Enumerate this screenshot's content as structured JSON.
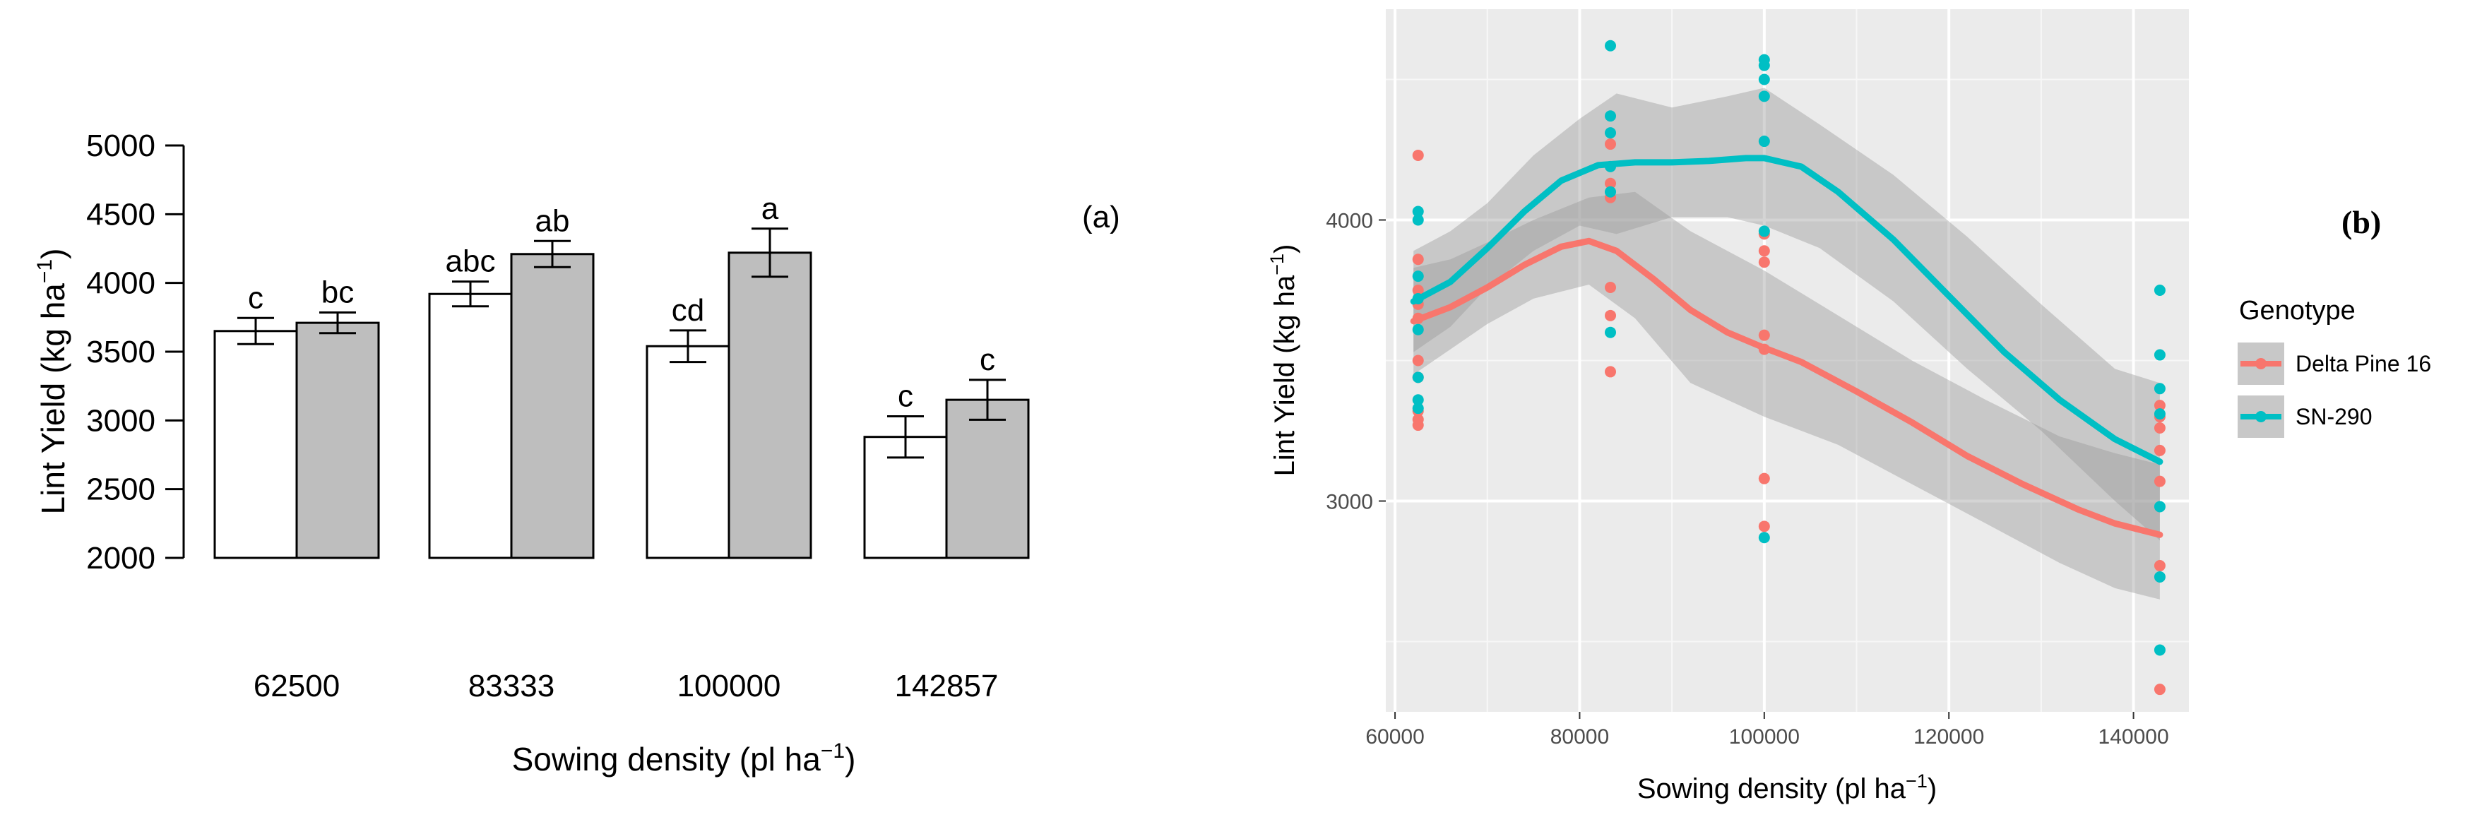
{
  "chart_data": [
    {
      "type": "bar",
      "panel_label": "(a)",
      "xlabel": "Sowing density (pl ha",
      "xlabel_sup": "−1",
      "xlabel_end": ")",
      "ylabel": "Lint Yield (kg ha",
      "ylabel_sup": "−1",
      "ylabel_end": ")",
      "ylim": [
        2000,
        5000
      ],
      "yticks": [
        "2000",
        "2500",
        "3000",
        "3500",
        "4000",
        "4500",
        "5000"
      ],
      "categories": [
        "62500",
        "83333",
        "100000",
        "142857"
      ],
      "series": [
        {
          "name": "Delta Pine 16",
          "color": "#ffffff",
          "values": [
            3650,
            3920,
            3540,
            2880
          ],
          "errors": [
            95,
            90,
            115,
            150
          ],
          "letters": [
            "c",
            "abc",
            "cd",
            "c"
          ]
        },
        {
          "name": "SN-290",
          "color": "#bebebe",
          "values": [
            3710,
            4210,
            4220,
            3150
          ],
          "errors": [
            75,
            95,
            175,
            145
          ],
          "letters": [
            "bc",
            "ab",
            "a",
            "c"
          ]
        }
      ]
    },
    {
      "type": "scatter",
      "panel_label": "(b)",
      "xlabel": "Sowing density (pl ha",
      "xlabel_sup": "−1",
      "xlabel_end": ")",
      "ylabel": "Lint Yield (kg ha",
      "ylabel_sup": "−1",
      "ylabel_end": ")",
      "xlim": [
        59000,
        146000
      ],
      "ylim": [
        2250,
        4750
      ],
      "xticks": [
        "60000",
        "80000",
        "100000",
        "120000",
        "140000"
      ],
      "yticks": [
        "3000",
        "4000"
      ],
      "legend_title": "Genotype",
      "legend_position": "right",
      "grid": true,
      "series": [
        {
          "name": "Delta Pine 16",
          "color": "#f8766d",
          "points": [
            [
              62500,
              4230
            ],
            [
              62500,
              3860
            ],
            [
              62500,
              3750
            ],
            [
              62500,
              3700
            ],
            [
              62500,
              3650
            ],
            [
              62500,
              3500
            ],
            [
              62500,
              3440
            ],
            [
              62500,
              3320
            ],
            [
              62500,
              3290
            ],
            [
              62500,
              3270
            ],
            [
              83333,
              4270
            ],
            [
              83333,
              4130
            ],
            [
              83333,
              4080
            ],
            [
              83333,
              3760
            ],
            [
              83333,
              3660
            ],
            [
              83333,
              3460
            ],
            [
              100000,
              3950
            ],
            [
              100000,
              3890
            ],
            [
              100000,
              3850
            ],
            [
              100000,
              3590
            ],
            [
              100000,
              3540
            ],
            [
              100000,
              3080
            ],
            [
              100000,
              2910
            ],
            [
              142857,
              3340
            ],
            [
              142857,
              3300
            ],
            [
              142857,
              3260
            ],
            [
              142857,
              3180
            ],
            [
              142857,
              3070
            ],
            [
              142857,
              2770
            ],
            [
              142857,
              2330
            ]
          ],
          "smooth": [
            [
              62000,
              3640
            ],
            [
              66000,
              3690
            ],
            [
              70000,
              3760
            ],
            [
              74000,
              3840
            ],
            [
              78000,
              3905
            ],
            [
              81000,
              3925
            ],
            [
              84000,
              3890
            ],
            [
              88000,
              3790
            ],
            [
              92000,
              3680
            ],
            [
              96000,
              3600
            ],
            [
              100000,
              3545
            ],
            [
              104000,
              3495
            ],
            [
              110000,
              3390
            ],
            [
              116000,
              3280
            ],
            [
              122000,
              3160
            ],
            [
              128000,
              3060
            ],
            [
              134000,
              2970
            ],
            [
              138000,
              2920
            ],
            [
              142857,
              2880
            ]
          ],
          "band": [
            [
              [
                62000,
                3450
              ],
              [
                66000,
                3540
              ],
              [
                70000,
                3630
              ],
              [
                75000,
                3720
              ],
              [
                81000,
                3770
              ],
              [
                86000,
                3650
              ],
              [
                92000,
                3420
              ],
              [
                100000,
                3300
              ],
              [
                108000,
                3200
              ],
              [
                116000,
                3060
              ],
              [
                124000,
                2920
              ],
              [
                132000,
                2780
              ],
              [
                138000,
                2690
              ],
              [
                142857,
                2650
              ]
            ],
            [
              [
                62000,
                3830
              ],
              [
                66000,
                3860
              ],
              [
                70000,
                3920
              ],
              [
                75000,
                4000
              ],
              [
                81000,
                4080
              ],
              [
                86000,
                4100
              ],
              [
                92000,
                3960
              ],
              [
                100000,
                3820
              ],
              [
                108000,
                3660
              ],
              [
                116000,
                3500
              ],
              [
                124000,
                3360
              ],
              [
                132000,
                3230
              ],
              [
                138000,
                3170
              ],
              [
                142857,
                3130
              ]
            ]
          ]
        },
        {
          "name": "SN-290",
          "color": "#00bfc4",
          "points": [
            [
              62500,
              4030
            ],
            [
              62500,
              4000
            ],
            [
              62500,
              3800
            ],
            [
              62500,
              3720
            ],
            [
              62500,
              3610
            ],
            [
              62500,
              3440
            ],
            [
              62500,
              3360
            ],
            [
              62500,
              3330
            ],
            [
              83333,
              4620
            ],
            [
              83333,
              4370
            ],
            [
              83333,
              4310
            ],
            [
              83333,
              4190
            ],
            [
              83333,
              4100
            ],
            [
              83333,
              3600
            ],
            [
              100000,
              4570
            ],
            [
              100000,
              4550
            ],
            [
              100000,
              4500
            ],
            [
              100000,
              4440
            ],
            [
              100000,
              4280
            ],
            [
              100000,
              3960
            ],
            [
              100000,
              2870
            ],
            [
              142857,
              3750
            ],
            [
              142857,
              3520
            ],
            [
              142857,
              3400
            ],
            [
              142857,
              3310
            ],
            [
              142857,
              2980
            ],
            [
              142857,
              2730
            ],
            [
              142857,
              2470
            ]
          ],
          "smooth": [
            [
              62000,
              3710
            ],
            [
              66000,
              3780
            ],
            [
              70000,
              3900
            ],
            [
              74000,
              4030
            ],
            [
              78000,
              4140
            ],
            [
              82000,
              4195
            ],
            [
              86000,
              4205
            ],
            [
              90000,
              4205
            ],
            [
              94000,
              4210
            ],
            [
              98000,
              4220
            ],
            [
              100000,
              4220
            ],
            [
              104000,
              4190
            ],
            [
              108000,
              4100
            ],
            [
              114000,
              3930
            ],
            [
              120000,
              3730
            ],
            [
              126000,
              3530
            ],
            [
              132000,
              3360
            ],
            [
              138000,
              3220
            ],
            [
              142857,
              3140
            ]
          ],
          "band": [
            [
              [
                62000,
                3530
              ],
              [
                66000,
                3620
              ],
              [
                70000,
                3760
              ],
              [
                75000,
                3890
              ],
              [
                80000,
                3980
              ],
              [
                84000,
                3950
              ],
              [
                90000,
                4010
              ],
              [
                96000,
                4010
              ],
              [
                100000,
                3980
              ],
              [
                106000,
                3900
              ],
              [
                114000,
                3710
              ],
              [
                122000,
                3470
              ],
              [
                130000,
                3250
              ],
              [
                138000,
                3000
              ],
              [
                142857,
                2860
              ]
            ],
            [
              [
                62000,
                3890
              ],
              [
                66000,
                3960
              ],
              [
                70000,
                4060
              ],
              [
                75000,
                4230
              ],
              [
                80000,
                4360
              ],
              [
                84000,
                4450
              ],
              [
                90000,
                4400
              ],
              [
                96000,
                4440
              ],
              [
                100000,
                4470
              ],
              [
                106000,
                4340
              ],
              [
                114000,
                4160
              ],
              [
                122000,
                3940
              ],
              [
                130000,
                3700
              ],
              [
                138000,
                3470
              ],
              [
                142857,
                3420
              ]
            ]
          ]
        }
      ]
    }
  ]
}
